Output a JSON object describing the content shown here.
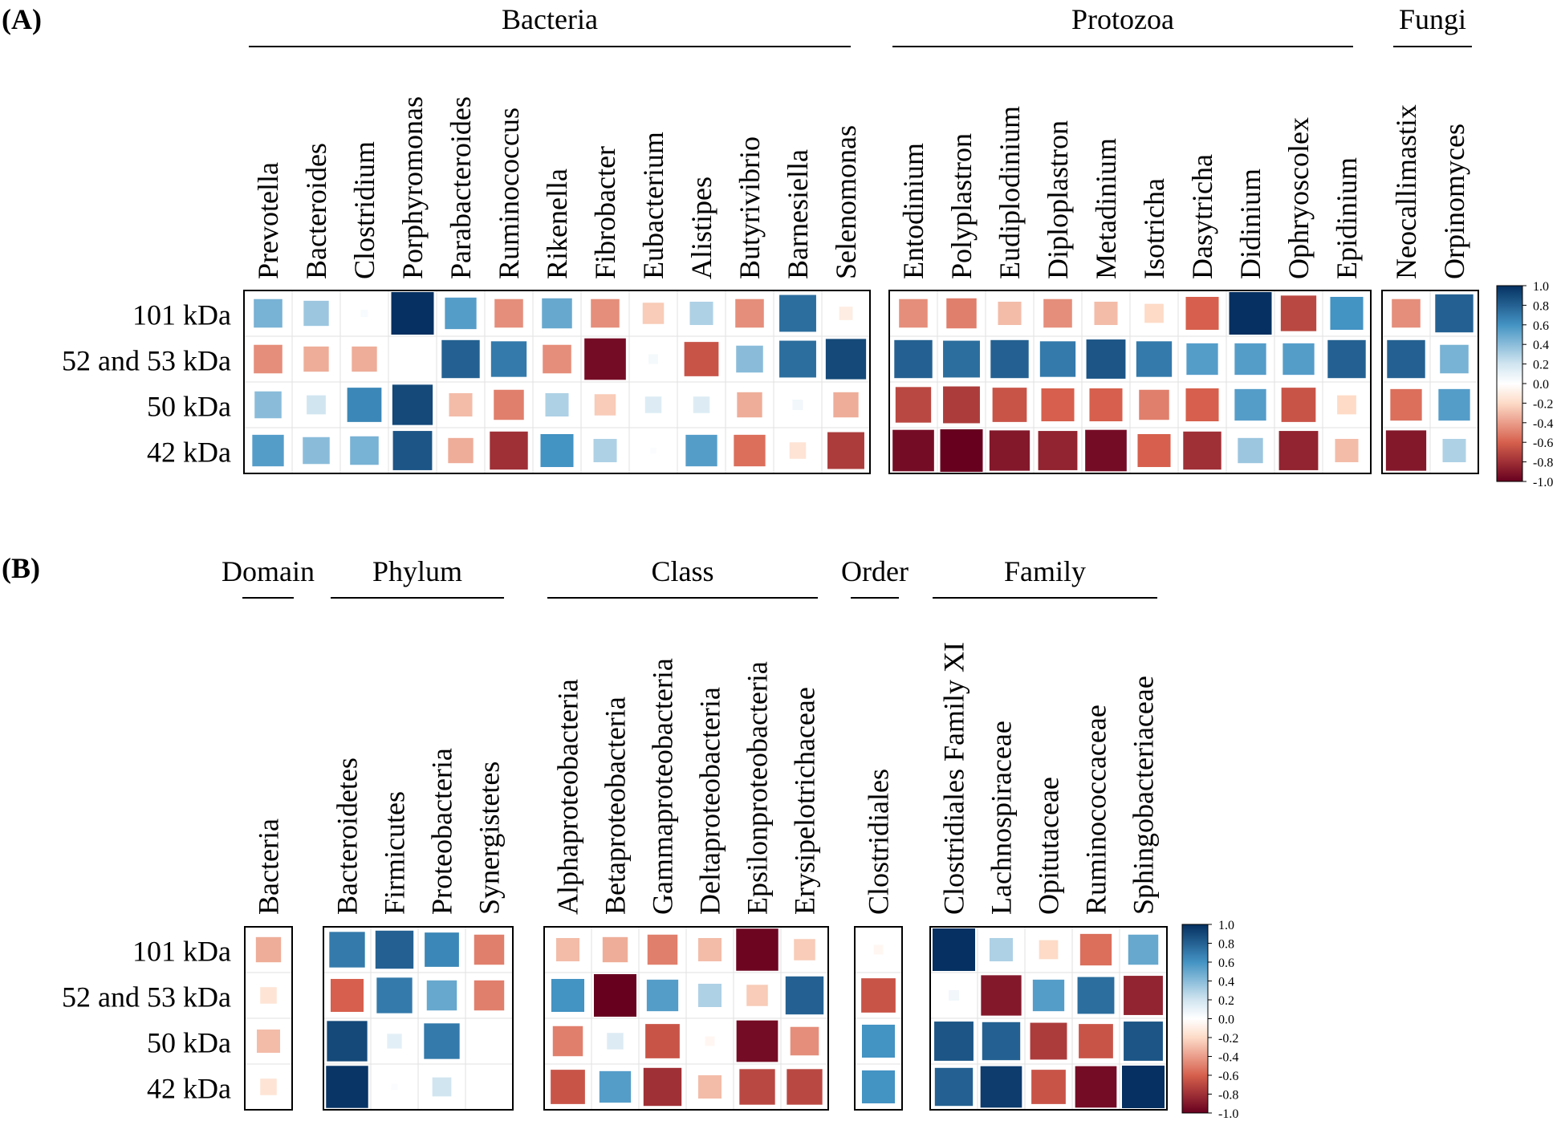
{
  "row_labels": [
    "101 kDa",
    "52 and 53 kDa",
    "50 kDa",
    "42 kDa"
  ],
  "colorbar": {
    "ticks": [
      "1.0",
      "0.8",
      "0.6",
      "0.4",
      "0.2",
      "0.0",
      "-0.2",
      "-0.4",
      "-0.6",
      "-0.8",
      "-1.0"
    ],
    "colors": {
      "neg_dark": "#67001f",
      "neg_mid": "#d6604d",
      "neg_light": "#fddbc7",
      "zero": "#ffffff",
      "pos_light": "#d1e5f0",
      "pos_mid": "#4393c3",
      "pos_dark": "#053061"
    }
  },
  "chart_data": [
    {
      "panel": "(A)",
      "type": "heatmap",
      "style": "correlation squares sized and colored by value",
      "rows": [
        "101 kDa",
        "52 and 53 kDa",
        "50 kDa",
        "42 kDa"
      ],
      "value_range": [
        -1,
        1
      ],
      "groups": [
        {
          "name": "Bacteria",
          "columns": [
            "Prevotella",
            "Bacteroides",
            "Clostridium",
            "Porphyromonas",
            "Parabacteroides",
            "Ruminococcus",
            "Rikenella",
            "Fibrobacter",
            "Eubacterium",
            "Alistipes",
            "Butyrivibrio",
            "Barnesiella",
            "Selenomonas"
          ],
          "values": [
            [
              0.45,
              0.35,
              0.03,
              1.0,
              0.55,
              -0.45,
              0.5,
              -0.45,
              -0.25,
              0.3,
              -0.45,
              0.75,
              -0.1
            ],
            [
              -0.45,
              -0.35,
              -0.35,
              0.0,
              0.8,
              0.7,
              -0.45,
              -0.95,
              0.05,
              -0.65,
              0.4,
              0.75,
              0.9
            ],
            [
              0.4,
              0.2,
              0.65,
              0.9,
              -0.3,
              -0.5,
              0.3,
              -0.25,
              0.15,
              0.15,
              -0.35,
              0.06,
              -0.35
            ],
            [
              0.55,
              0.4,
              0.45,
              0.85,
              -0.35,
              -0.8,
              0.6,
              0.3,
              0.02,
              0.55,
              -0.55,
              -0.15,
              -0.75
            ]
          ]
        },
        {
          "name": "Protozoa",
          "columns": [
            "Entodinium",
            "Polyplastron",
            "Eudiplodinium",
            "Diploplastron",
            "Metadinium",
            "Isotricha",
            "Dasytricha",
            "Didinium",
            "Ophryoscolex",
            "Epidinium"
          ],
          "values": [
            [
              -0.45,
              -0.5,
              -0.3,
              -0.45,
              -0.3,
              -0.2,
              -0.6,
              1.0,
              -0.7,
              0.6
            ],
            [
              0.8,
              0.75,
              0.8,
              0.7,
              0.85,
              0.7,
              0.55,
              0.55,
              0.55,
              0.8
            ],
            [
              -0.7,
              -0.75,
              -0.65,
              -0.6,
              -0.6,
              -0.5,
              -0.6,
              0.55,
              -0.65,
              -0.2
            ],
            [
              -0.95,
              -1.0,
              -0.9,
              -0.85,
              -0.95,
              -0.6,
              -0.8,
              0.35,
              -0.85,
              -0.3
            ]
          ]
        },
        {
          "name": "Fungi",
          "columns": [
            "Neocallimastix",
            "Orpinomyces"
          ],
          "values": [
            [
              -0.45,
              0.8
            ],
            [
              0.8,
              0.45
            ],
            [
              -0.55,
              0.55
            ],
            [
              -0.9,
              0.3
            ]
          ]
        }
      ]
    },
    {
      "panel": "(B)",
      "type": "heatmap",
      "style": "correlation squares sized and colored by value",
      "rows": [
        "101 kDa",
        "52 and 53 kDa",
        "50 kDa",
        "42 kDa"
      ],
      "value_range": [
        -1,
        1
      ],
      "groups": [
        {
          "name": "Domain",
          "columns": [
            "Bacteria"
          ],
          "values": [
            [
              -0.35
            ],
            [
              -0.15
            ],
            [
              -0.3
            ],
            [
              -0.15
            ]
          ]
        },
        {
          "name": "Phylum",
          "columns": [
            "Bacteroidetes",
            "Firmicutes",
            "Proteobacteria",
            "Synergistetes"
          ],
          "values": [
            [
              0.7,
              0.8,
              0.65,
              -0.5
            ],
            [
              -0.6,
              0.7,
              0.5,
              -0.5
            ],
            [
              0.9,
              0.12,
              0.7,
              0.0
            ],
            [
              0.98,
              0.02,
              0.2,
              0.0
            ]
          ]
        },
        {
          "name": "Class",
          "columns": [
            "Alphaproteobacteria",
            "Betaproteobacteria",
            "Gammaproteobacteria",
            "Deltaproteobacteria",
            "Epsilonproteobacteria",
            "Erysipelotrichaceae"
          ],
          "values": [
            [
              -0.3,
              -0.35,
              -0.5,
              -0.3,
              -0.98,
              -0.25
            ],
            [
              0.6,
              -1.0,
              0.55,
              0.3,
              -0.25,
              0.8
            ],
            [
              -0.5,
              0.15,
              -0.65,
              -0.05,
              -0.95,
              -0.45
            ],
            [
              -0.65,
              0.55,
              -0.8,
              -0.3,
              -0.7,
              -0.7
            ]
          ]
        },
        {
          "name": "Order",
          "columns": [
            "Clostridiales"
          ],
          "values": [
            [
              -0.05
            ],
            [
              -0.65
            ],
            [
              0.6
            ],
            [
              0.6
            ]
          ]
        },
        {
          "name": "Family",
          "columns": [
            "Clostridiales Family XI",
            "Lachnospiraceae",
            "Opitutaceae",
            "Ruminococcaceae",
            "Sphingobacteriaceae"
          ],
          "values": [
            [
              1.0,
              0.3,
              -0.2,
              -0.55,
              0.5
            ],
            [
              0.06,
              -0.9,
              0.55,
              0.75,
              -0.85
            ],
            [
              0.85,
              0.8,
              -0.75,
              -0.65,
              0.85
            ],
            [
              0.8,
              0.95,
              -0.65,
              -0.95,
              1.0
            ]
          ]
        }
      ]
    }
  ]
}
